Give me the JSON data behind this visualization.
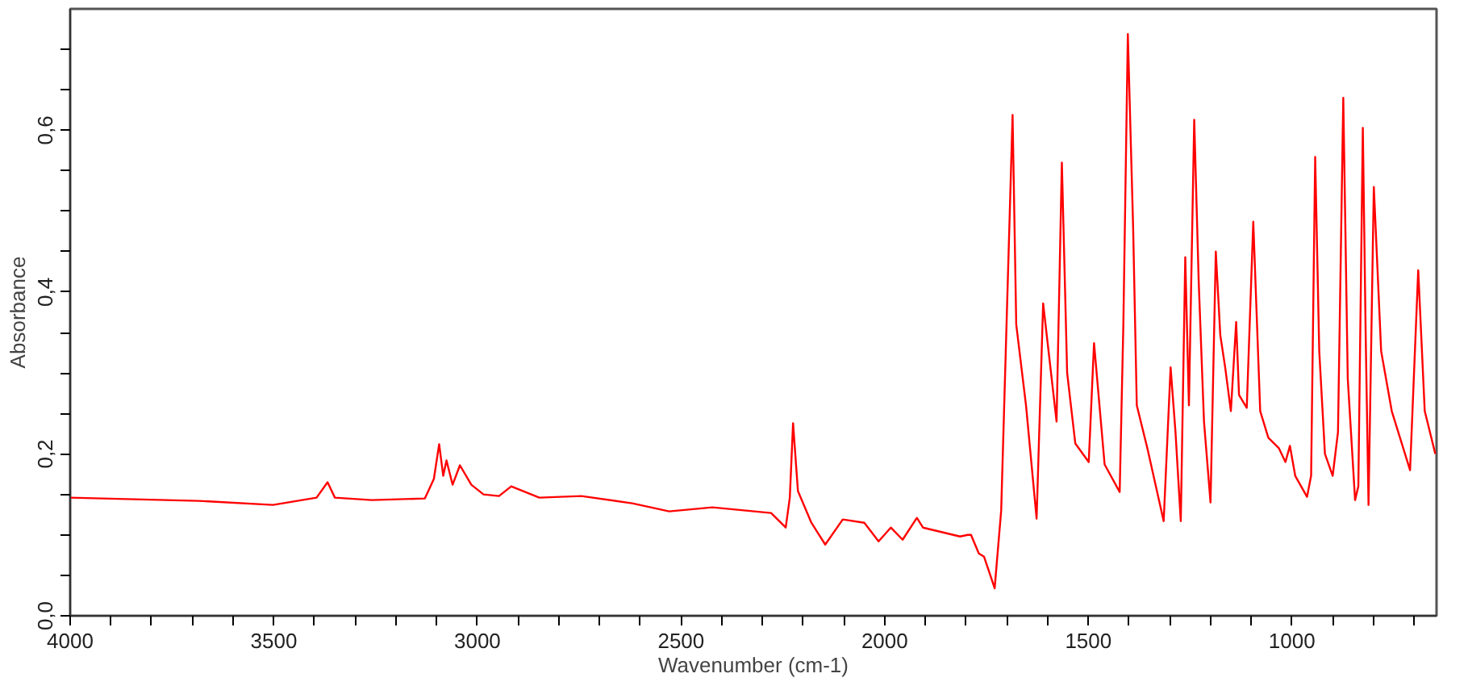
{
  "chart_data": {
    "type": "line",
    "xlabel": "Wavenumber (cm-1)",
    "ylabel": "Absorbance",
    "xlim": [
      4000,
      645
    ],
    "ylim": [
      0,
      0.75
    ],
    "xticks": [
      4000,
      {
        "value": 3900,
        "label": null
      },
      {
        "value": 3800,
        "label": null
      },
      {
        "value": 3700,
        "label": null
      },
      {
        "value": 3600,
        "label": null
      },
      3500,
      {
        "value": 3400,
        "label": null
      },
      {
        "value": 3300,
        "label": null
      },
      {
        "value": 3200,
        "label": null
      },
      {
        "value": 3100,
        "label": null
      },
      3000,
      {
        "value": 2900,
        "label": null
      },
      {
        "value": 2800,
        "label": null
      },
      {
        "value": 2700,
        "label": null
      },
      {
        "value": 2600,
        "label": null
      },
      2500,
      {
        "value": 2400,
        "label": null
      },
      {
        "value": 2300,
        "label": null
      },
      {
        "value": 2200,
        "label": null
      },
      {
        "value": 2100,
        "label": null
      },
      2000,
      {
        "value": 1900,
        "label": null
      },
      {
        "value": 1800,
        "label": null
      },
      {
        "value": 1700,
        "label": null
      },
      {
        "value": 1600,
        "label": null
      },
      1500,
      {
        "value": 1400,
        "label": null
      },
      {
        "value": 1300,
        "label": null
      },
      {
        "value": 1200,
        "label": null
      },
      {
        "value": 1100,
        "label": null
      },
      1000,
      {
        "value": 900,
        "label": null
      },
      {
        "value": 800,
        "label": null
      },
      {
        "value": 700,
        "label": null
      }
    ],
    "yticks": [
      {
        "value": 0,
        "label": "0,0"
      },
      {
        "value": 0.05,
        "label": null
      },
      {
        "value": 0.1,
        "label": null
      },
      {
        "value": 0.15,
        "label": null
      },
      {
        "value": 0.2,
        "label": "0,2"
      },
      {
        "value": 0.25,
        "label": null
      },
      {
        "value": 0.3,
        "label": null
      },
      {
        "value": 0.35,
        "label": null
      },
      {
        "value": 0.4,
        "label": "0,4"
      },
      {
        "value": 0.45,
        "label": null
      },
      {
        "value": 0.5,
        "label": null
      },
      {
        "value": 0.55,
        "label": null
      },
      {
        "value": 0.6,
        "label": "0,6"
      },
      {
        "value": 0.65,
        "label": null
      },
      {
        "value": 0.7,
        "label": null
      }
    ],
    "grid": false,
    "marker": "none",
    "line_style": "solid",
    "series": [
      {
        "color": "#ff0000",
        "x": [
          4000,
          3685,
          3502,
          3395,
          3368,
          3350,
          3259,
          3129,
          3107,
          3094,
          3084,
          3076,
          3061,
          3043,
          3015,
          2985,
          2947,
          2917,
          2848,
          2745,
          2620,
          2529,
          2423,
          2279,
          2243,
          2233,
          2225,
          2213,
          2180,
          2146,
          2103,
          2050,
          2015,
          1985,
          1956,
          1921,
          1906,
          1815,
          1796,
          1788,
          1769,
          1756,
          1730,
          1714,
          1686,
          1677,
          1653,
          1627,
          1611,
          1578,
          1565,
          1552,
          1532,
          1499,
          1486,
          1460,
          1423,
          1414,
          1403,
          1390,
          1381,
          1355,
          1315,
          1298,
          1286,
          1273,
          1262,
          1253,
          1240,
          1229,
          1216,
          1200,
          1187,
          1176,
          1164,
          1150,
          1137,
          1130,
          1111,
          1095,
          1078,
          1058,
          1032,
          1016,
          1005,
          992,
          963,
          953,
          943,
          933,
          919,
          900,
          887,
          874,
          863,
          845,
          837,
          826,
          819,
          812,
          799,
          781,
          755,
          710,
          690,
          674,
          648
        ],
        "values": [
          0.146,
          0.142,
          0.137,
          0.146,
          0.165,
          0.146,
          0.143,
          0.145,
          0.169,
          0.212,
          0.173,
          0.192,
          0.162,
          0.186,
          0.162,
          0.15,
          0.148,
          0.16,
          0.146,
          0.148,
          0.139,
          0.129,
          0.134,
          0.127,
          0.109,
          0.146,
          0.238,
          0.154,
          0.115,
          0.088,
          0.119,
          0.115,
          0.092,
          0.109,
          0.094,
          0.121,
          0.109,
          0.098,
          0.1,
          0.1,
          0.077,
          0.073,
          0.034,
          0.13,
          0.619,
          0.36,
          0.26,
          0.12,
          0.386,
          0.24,
          0.56,
          0.3,
          0.213,
          0.19,
          0.337,
          0.187,
          0.153,
          0.36,
          0.719,
          0.48,
          0.26,
          0.207,
          0.117,
          0.307,
          0.227,
          0.117,
          0.443,
          0.26,
          0.613,
          0.413,
          0.24,
          0.14,
          0.45,
          0.347,
          0.307,
          0.253,
          0.363,
          0.273,
          0.257,
          0.487,
          0.253,
          0.22,
          0.207,
          0.19,
          0.21,
          0.173,
          0.147,
          0.173,
          0.567,
          0.327,
          0.2,
          0.173,
          0.227,
          0.64,
          0.293,
          0.143,
          0.16,
          0.603,
          0.347,
          0.137,
          0.53,
          0.327,
          0.253,
          0.18,
          0.427,
          0.253,
          0.2
        ]
      }
    ]
  }
}
